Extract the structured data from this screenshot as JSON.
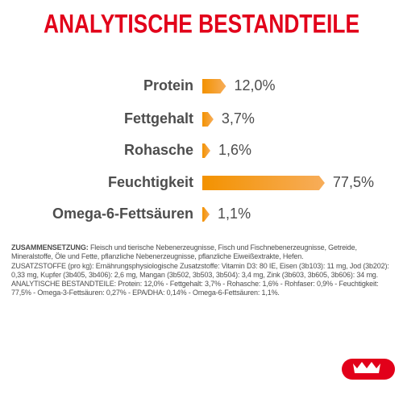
{
  "chart_data": {
    "type": "bar",
    "orientation": "horizontal",
    "title": "ANALYTISCHE BESTANDTEILE",
    "categories": [
      "Protein",
      "Fettgehalt",
      "Rohasche",
      "Feuchtigkeit",
      "Omega-6-Fettsäuren"
    ],
    "values": [
      12.0,
      3.7,
      1.6,
      77.5,
      1.1
    ],
    "value_labels": [
      "12,0%",
      "3,7%",
      "1,6%",
      "77,5%",
      "1,1%"
    ],
    "color": "#f39200"
  },
  "composition": {
    "heading": "ZUSAMMENSETZUNG:",
    "text": "Fleisch und tierische Nebenerzeugnisse, Fisch und Fischnebenerzeugnisse, Getreide, Mineralstoffe, Öle und Fette, pflanzliche Nebenerzeugnisse, pflanzliche Eiweißextrakte, Hefen.",
    "additives": "ZUSATZSTOFFE (pro kg): Ernährungsphysiologische Zusatzstoffe: Vitamin D3: 80 IE, Eisen (3b103): 11 mg, Jod (3b202): 0,33 mg, Kupfer (3b405, 3b406): 2,6 mg, Mangan (3b502, 3b503, 3b504): 3,4 mg, Zink (3b603, 3b605, 3b606): 34 mg.",
    "analysis": "ANALYTISCHE BESTANDTEILE: Protein: 12,0% - Fettgehalt: 3,7% - Rohasche: 1,6% - Rohfaser: 0,9% - Feuchtigkeit: 77,5% - Omega-3-Fettsäuren: 0,27% - EPA/DHA: 0,14% - Omega-6-Fettsäuren: 1,1%."
  }
}
